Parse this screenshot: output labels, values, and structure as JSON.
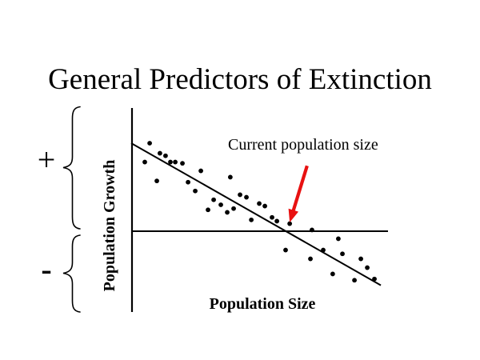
{
  "slide": {
    "title": "General Predictors of Extinction",
    "background": "#ffffff",
    "ink_color": "#000000"
  },
  "region_labels": {
    "positive": "+",
    "negative": "-"
  },
  "chart_data": {
    "type": "scatter",
    "title": "",
    "xlabel": "Population Size",
    "ylabel": "Population Growth",
    "x_range": [
      0,
      100
    ],
    "y_range": [
      -0.65,
      0.98
    ],
    "grid": false,
    "legend": false,
    "point_color": "#000000",
    "line_color": "#000000",
    "points": [
      [
        6.9,
        0.7
      ],
      [
        5.0,
        0.55
      ],
      [
        10.9,
        0.62
      ],
      [
        13.1,
        0.6
      ],
      [
        15.0,
        0.55
      ],
      [
        16.9,
        0.55
      ],
      [
        19.7,
        0.54
      ],
      [
        9.7,
        0.4
      ],
      [
        21.9,
        0.39
      ],
      [
        24.7,
        0.32
      ],
      [
        26.9,
        0.48
      ],
      [
        38.4,
        0.43
      ],
      [
        29.7,
        0.17
      ],
      [
        31.9,
        0.25
      ],
      [
        34.7,
        0.21
      ],
      [
        37.2,
        0.15
      ],
      [
        39.7,
        0.18
      ],
      [
        42.2,
        0.29
      ],
      [
        44.7,
        0.27
      ],
      [
        46.6,
        0.09
      ],
      [
        49.7,
        0.22
      ],
      [
        51.9,
        0.2
      ],
      [
        54.7,
        0.11
      ],
      [
        56.6,
        0.08
      ],
      [
        61.6,
        0.06
      ],
      [
        70.3,
        0.01
      ],
      [
        60.0,
        -0.15
      ],
      [
        69.7,
        -0.22
      ],
      [
        74.7,
        -0.15
      ],
      [
        80.6,
        -0.06
      ],
      [
        82.2,
        -0.18
      ],
      [
        89.4,
        -0.22
      ],
      [
        91.9,
        -0.29
      ],
      [
        78.4,
        -0.34
      ],
      [
        86.9,
        -0.39
      ],
      [
        94.7,
        -0.38
      ]
    ],
    "trend_line": {
      "x1": -0.3,
      "y1": 0.7,
      "x2": 97.2,
      "y2": -0.43
    },
    "zero_line": {
      "y": 0,
      "x1": 0,
      "x2": 100
    },
    "annotation": {
      "text": "Current population size",
      "arrow_color": "#e81111",
      "arrow_tail": {
        "x": 68.4,
        "y": 0.52
      },
      "arrow_tip": {
        "x": 61.6,
        "y": 0.07
      }
    }
  }
}
